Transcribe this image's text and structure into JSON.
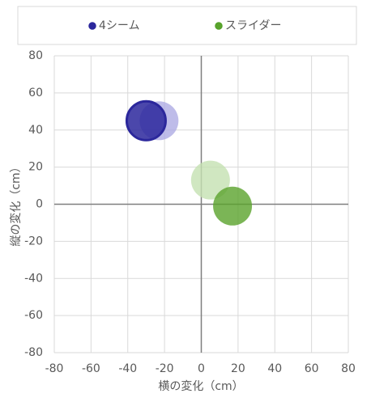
{
  "chart_data": {
    "type": "scatter",
    "x_label": "横の変化（cm）",
    "y_label": "縦の変化（cm）",
    "series": [
      {
        "name": "4シーム",
        "color": "#2b279c",
        "x": [
          -23,
          -30
        ],
        "values": [
          45,
          45
        ],
        "point_colors": [
          "#aeabe3",
          "#2b279c"
        ]
      },
      {
        "name": "スライダー",
        "color": "#55a22a",
        "x": [
          5,
          17
        ],
        "values": [
          13,
          -1
        ],
        "point_colors": [
          "#c4e1b2",
          "#5aa32c"
        ]
      }
    ],
    "xlim": [
      -80,
      80
    ],
    "xticks": [
      -80,
      -60,
      -40,
      -20,
      0,
      20,
      40,
      60,
      80
    ],
    "ylim": [
      -80,
      80
    ],
    "yticks": [
      -80,
      -60,
      -40,
      -20,
      0,
      20,
      40,
      60,
      80
    ],
    "grid": true,
    "legend": "top"
  }
}
